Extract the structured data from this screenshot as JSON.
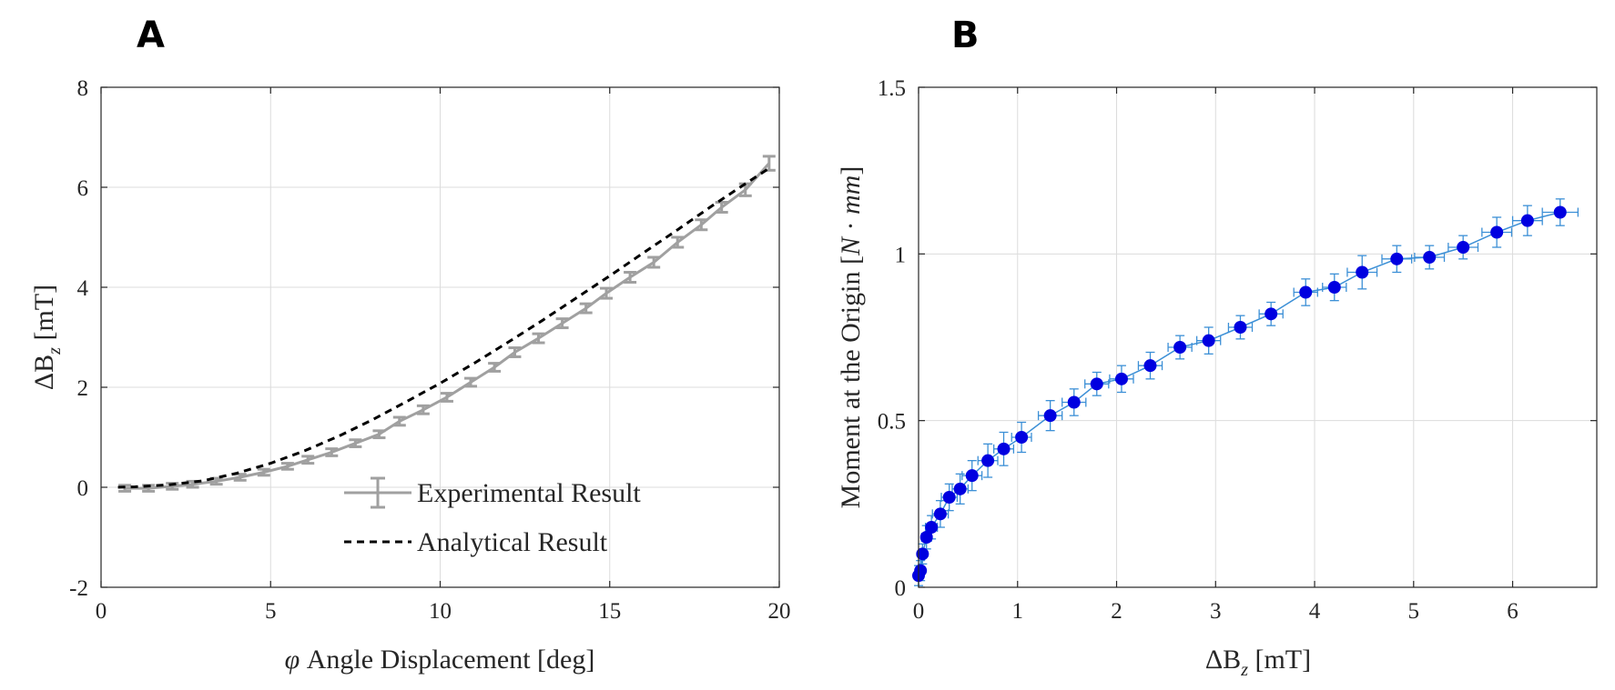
{
  "chart_data": [
    {
      "type": "line",
      "panel": "A",
      "xlabel_symbol": "φ",
      "xlabel_text": "Angle Displacement [deg]",
      "ylabel_symbol": "ΔB",
      "ylabel_sub": "z",
      "ylabel_text": "[mT]",
      "xlim": [
        0,
        20
      ],
      "ylim": [
        -2,
        8
      ],
      "xticks": [
        0,
        5,
        10,
        15,
        20
      ],
      "xtick_labels": [
        "0",
        "5",
        "10",
        "15",
        "20"
      ],
      "yticks": [
        -2,
        0,
        2,
        4,
        6,
        8
      ],
      "ytick_labels": [
        "-2",
        "0",
        "2",
        "4",
        "6",
        "8"
      ],
      "grid": true,
      "legend_position": "bottom-right",
      "series": [
        {
          "name": "Experimental Result",
          "style": "solid-errorbar",
          "color": "#a0a0a0",
          "x": [
            0.7,
            1.4,
            2.1,
            2.7,
            3.4,
            4.1,
            4.8,
            5.5,
            6.1,
            6.8,
            7.5,
            8.2,
            8.8,
            9.5,
            10.2,
            10.9,
            11.6,
            12.2,
            12.9,
            13.6,
            14.3,
            14.9,
            15.6,
            16.3,
            17.0,
            17.7,
            18.3,
            19.0,
            19.7
          ],
          "y": [
            -0.02,
            -0.02,
            0.02,
            0.06,
            0.12,
            0.2,
            0.3,
            0.42,
            0.55,
            0.7,
            0.88,
            1.06,
            1.32,
            1.55,
            1.8,
            2.1,
            2.4,
            2.7,
            2.98,
            3.28,
            3.58,
            3.88,
            4.2,
            4.5,
            4.9,
            5.25,
            5.6,
            5.95,
            6.48
          ],
          "yerr": [
            0.06,
            0.06,
            0.06,
            0.06,
            0.06,
            0.06,
            0.06,
            0.06,
            0.07,
            0.07,
            0.07,
            0.07,
            0.08,
            0.08,
            0.08,
            0.08,
            0.08,
            0.09,
            0.09,
            0.09,
            0.09,
            0.1,
            0.1,
            0.1,
            0.1,
            0.1,
            0.1,
            0.12,
            0.14
          ]
        },
        {
          "name": "Analytical Result",
          "style": "dashed",
          "color": "#000000",
          "x": [
            0.5,
            1,
            2,
            3,
            4,
            5,
            6,
            7,
            8,
            9,
            10,
            11,
            12,
            13,
            14,
            15,
            16,
            17,
            18,
            19,
            19.7
          ],
          "y": [
            0.0,
            0.01,
            0.05,
            0.13,
            0.28,
            0.48,
            0.73,
            1.02,
            1.35,
            1.71,
            2.08,
            2.48,
            2.9,
            3.33,
            3.78,
            4.23,
            4.69,
            5.15,
            5.62,
            6.07,
            6.38
          ]
        }
      ]
    },
    {
      "type": "line",
      "panel": "B",
      "xlabel_symbol": "ΔB",
      "xlabel_sub": "z",
      "xlabel_text": "[mT]",
      "ylabel_text": "Moment at the Origin",
      "ylabel_unit_open": "[",
      "ylabel_unit_N": "N",
      "ylabel_unit_dot": "·",
      "ylabel_unit_mm": "mm",
      "ylabel_unit_close": "]",
      "xlim": [
        0,
        6.85
      ],
      "ylim": [
        0,
        1.5
      ],
      "xticks": [
        0,
        1,
        2,
        3,
        4,
        5,
        6
      ],
      "xtick_labels": [
        "0",
        "1",
        "2",
        "3",
        "4",
        "5",
        "6"
      ],
      "yticks": [
        0,
        0.5,
        1,
        1.5
      ],
      "ytick_labels": [
        "0",
        "0.5",
        "1",
        "1.5"
      ],
      "grid": true,
      "series": [
        {
          "style": "line-marker-errorbar",
          "color": "#0000e0",
          "line_color": "#3b8fd6",
          "err_color": "#3b8fd6",
          "x": [
            0.0,
            0.02,
            0.04,
            0.08,
            0.13,
            0.22,
            0.31,
            0.42,
            0.54,
            0.7,
            0.86,
            1.04,
            1.33,
            1.57,
            1.8,
            2.05,
            2.34,
            2.64,
            2.93,
            3.25,
            3.56,
            3.91,
            4.2,
            4.48,
            4.83,
            5.16,
            5.5,
            5.84,
            6.15,
            6.48
          ],
          "y": [
            0.035,
            0.05,
            0.1,
            0.15,
            0.18,
            0.22,
            0.27,
            0.295,
            0.335,
            0.38,
            0.415,
            0.45,
            0.515,
            0.555,
            0.61,
            0.625,
            0.665,
            0.72,
            0.74,
            0.78,
            0.82,
            0.885,
            0.9,
            0.945,
            0.985,
            0.99,
            1.02,
            1.065,
            1.1,
            1.125
          ],
          "yerr": [
            0.03,
            0.03,
            0.03,
            0.035,
            0.035,
            0.04,
            0.04,
            0.045,
            0.045,
            0.05,
            0.05,
            0.045,
            0.045,
            0.04,
            0.035,
            0.04,
            0.04,
            0.035,
            0.04,
            0.035,
            0.035,
            0.04,
            0.04,
            0.05,
            0.04,
            0.035,
            0.035,
            0.045,
            0.045,
            0.04
          ],
          "xerr": [
            0.02,
            0.03,
            0.03,
            0.05,
            0.06,
            0.08,
            0.08,
            0.08,
            0.1,
            0.1,
            0.1,
            0.1,
            0.12,
            0.12,
            0.12,
            0.12,
            0.12,
            0.12,
            0.12,
            0.12,
            0.12,
            0.12,
            0.12,
            0.15,
            0.15,
            0.15,
            0.15,
            0.15,
            0.15,
            0.18
          ]
        }
      ]
    }
  ],
  "panels": {
    "a": "A",
    "b": "B"
  }
}
